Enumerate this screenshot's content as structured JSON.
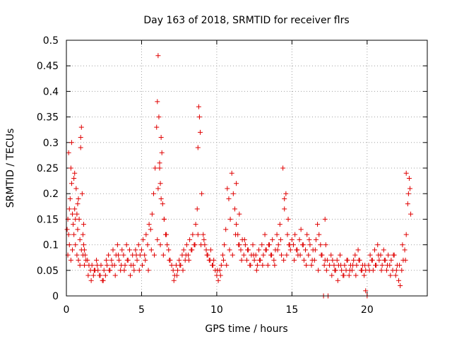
{
  "chart_data": {
    "type": "scatter",
    "title": "Day 163 of 2018, SRMTID for receiver flrs",
    "xlabel": "GPS time / hours",
    "ylabel": "SRMTID / TECUs",
    "xlim": [
      0,
      24
    ],
    "ylim": [
      0,
      0.5
    ],
    "x_ticks": [
      0,
      5,
      10,
      15,
      20
    ],
    "x_tick_labels": [
      "0",
      "5",
      "10",
      "15",
      "20"
    ],
    "y_ticks": [
      0,
      0.05,
      0.1,
      0.15,
      0.2,
      0.25,
      0.3,
      0.35,
      0.4,
      0.45,
      0.5
    ],
    "y_tick_labels": [
      "0",
      "0.05",
      "0.1",
      "0.15",
      "0.2",
      "0.25",
      "0.3",
      "0.35",
      "0.4",
      "0.45",
      "0.5"
    ],
    "grid": true,
    "marker": "+",
    "marker_color": "#e00000",
    "series": [
      {
        "name": "SRMTID",
        "x": [
          0.05,
          0.1,
          0.15,
          0.2,
          0.25,
          0.3,
          0.35,
          0.4,
          0.45,
          0.5,
          0.55,
          0.6,
          0.65,
          0.7,
          0.75,
          0.8,
          0.85,
          0.9,
          0.95,
          1.0,
          1.05,
          1.1,
          1.15,
          1.2,
          1.25,
          1.3,
          0.1,
          0.2,
          0.3,
          0.4,
          0.5,
          0.6,
          0.7,
          0.8,
          0.9,
          1.0,
          1.1,
          1.2,
          0.15,
          0.35,
          0.55,
          0.75,
          0.95,
          1.15,
          1.4,
          1.5,
          1.6,
          1.7,
          1.8,
          1.9,
          2.0,
          2.1,
          2.2,
          2.3,
          2.4,
          2.5,
          2.6,
          2.7,
          2.8,
          2.9,
          3.0,
          3.1,
          3.2,
          3.3,
          3.4,
          3.5,
          3.6,
          3.7,
          3.8,
          3.9,
          4.0,
          4.1,
          4.2,
          4.3,
          4.4,
          4.5,
          4.6,
          4.7,
          4.8,
          4.9,
          1.45,
          1.65,
          1.85,
          2.05,
          2.25,
          2.45,
          2.65,
          2.85,
          3.05,
          3.25,
          3.45,
          3.65,
          3.85,
          4.05,
          4.25,
          4.45,
          4.65,
          4.85,
          5.0,
          5.1,
          5.2,
          5.3,
          5.4,
          5.5,
          5.6,
          5.7,
          5.8,
          5.9,
          6.0,
          6.05,
          6.1,
          6.15,
          6.2,
          6.25,
          6.3,
          6.35,
          6.4,
          6.5,
          6.6,
          6.7,
          6.8,
          6.9,
          7.0,
          5.05,
          5.25,
          5.45,
          5.65,
          5.85,
          6.05,
          6.25,
          6.45,
          6.65,
          6.85,
          6.1,
          6.2,
          6.3,
          6.5,
          7.1,
          7.2,
          7.3,
          7.4,
          7.5,
          7.6,
          7.7,
          7.8,
          7.9,
          8.0,
          8.1,
          8.2,
          8.3,
          8.4,
          8.5,
          8.6,
          8.7,
          8.75,
          8.8,
          8.85,
          8.9,
          9.0,
          9.1,
          9.2,
          9.3,
          9.4,
          9.5,
          9.6,
          9.7,
          9.8,
          9.9,
          7.15,
          7.35,
          7.55,
          7.75,
          7.95,
          8.15,
          8.35,
          8.55,
          8.75,
          8.95,
          9.15,
          9.35,
          9.55,
          9.75,
          10.0,
          10.1,
          10.2,
          10.3,
          10.4,
          10.5,
          10.6,
          10.7,
          10.8,
          10.9,
          11.0,
          11.1,
          11.2,
          11.3,
          11.4,
          11.5,
          11.6,
          11.7,
          11.8,
          11.9,
          12.0,
          12.1,
          12.2,
          12.3,
          12.4,
          12.5,
          10.05,
          10.25,
          10.45,
          10.65,
          10.85,
          11.05,
          11.25,
          11.45,
          11.65,
          11.85,
          12.05,
          12.25,
          12.45,
          11.3,
          11.5,
          12.6,
          12.7,
          12.8,
          12.9,
          13.0,
          13.1,
          13.2,
          13.3,
          13.4,
          13.5,
          13.6,
          13.7,
          13.8,
          13.9,
          14.0,
          14.1,
          14.2,
          14.3,
          14.4,
          14.5,
          14.6,
          14.7,
          14.8,
          14.9,
          15.0,
          12.65,
          12.85,
          13.05,
          13.25,
          13.45,
          13.65,
          13.85,
          14.05,
          14.25,
          14.45,
          14.65,
          14.85,
          14.5,
          14.75,
          15.1,
          15.2,
          15.3,
          15.4,
          15.5,
          15.6,
          15.7,
          15.8,
          15.9,
          16.0,
          16.1,
          16.2,
          16.3,
          16.4,
          16.5,
          16.6,
          16.7,
          16.8,
          16.9,
          17.0,
          17.1,
          17.2,
          17.3,
          17.4,
          17.5,
          15.15,
          15.35,
          15.55,
          15.75,
          15.95,
          16.15,
          16.35,
          16.55,
          16.75,
          16.95,
          17.15,
          17.35,
          17.2,
          17.25,
          17.6,
          17.7,
          17.8,
          17.9,
          18.0,
          18.1,
          18.2,
          18.3,
          18.4,
          18.5,
          18.6,
          18.7,
          18.8,
          18.9,
          19.0,
          19.1,
          19.2,
          19.3,
          19.4,
          19.5,
          19.6,
          19.7,
          19.8,
          19.9,
          20.0,
          17.65,
          17.85,
          18.05,
          18.25,
          18.45,
          18.65,
          18.85,
          19.05,
          19.25,
          19.45,
          19.65,
          19.85,
          19.9,
          20.1,
          20.2,
          20.3,
          20.4,
          20.5,
          20.6,
          20.7,
          20.8,
          20.9,
          21.0,
          21.1,
          21.2,
          21.3,
          21.4,
          21.5,
          21.6,
          21.7,
          21.8,
          21.9,
          22.0,
          22.1,
          22.2,
          22.3,
          22.4,
          22.5,
          22.6,
          22.7,
          22.8,
          22.9,
          20.15,
          20.35,
          20.55,
          20.75,
          20.95,
          21.15,
          21.35,
          21.55,
          21.75,
          21.95,
          22.15,
          22.35,
          22.55,
          22.75,
          22.6,
          22.85
        ],
        "y": [
          0.13,
          0.15,
          0.12,
          0.17,
          0.19,
          0.25,
          0.22,
          0.16,
          0.14,
          0.23,
          0.17,
          0.15,
          0.21,
          0.16,
          0.13,
          0.19,
          0.15,
          0.11,
          0.29,
          0.33,
          0.2,
          0.12,
          0.1,
          0.09,
          0.08,
          0.07,
          0.08,
          0.1,
          0.07,
          0.09,
          0.12,
          0.1,
          0.08,
          0.07,
          0.06,
          0.09,
          0.08,
          0.06,
          0.28,
          0.3,
          0.24,
          0.18,
          0.31,
          0.14,
          0.07,
          0.06,
          0.05,
          0.06,
          0.04,
          0.05,
          0.07,
          0.05,
          0.04,
          0.06,
          0.03,
          0.05,
          0.04,
          0.06,
          0.08,
          0.05,
          0.07,
          0.09,
          0.06,
          0.08,
          0.1,
          0.07,
          0.05,
          0.09,
          0.08,
          0.06,
          0.1,
          0.07,
          0.09,
          0.06,
          0.08,
          0.05,
          0.09,
          0.07,
          0.1,
          0.08,
          0.04,
          0.03,
          0.05,
          0.06,
          0.04,
          0.03,
          0.07,
          0.05,
          0.06,
          0.04,
          0.08,
          0.06,
          0.05,
          0.07,
          0.04,
          0.06,
          0.08,
          0.05,
          0.09,
          0.11,
          0.08,
          0.12,
          0.1,
          0.14,
          0.13,
          0.16,
          0.2,
          0.25,
          0.33,
          0.38,
          0.47,
          0.35,
          0.26,
          0.22,
          0.31,
          0.28,
          0.18,
          0.15,
          0.12,
          0.1,
          0.09,
          0.07,
          0.06,
          0.06,
          0.07,
          0.05,
          0.09,
          0.08,
          0.11,
          0.1,
          0.08,
          0.12,
          0.07,
          0.21,
          0.25,
          0.19,
          0.15,
          0.05,
          0.04,
          0.06,
          0.05,
          0.07,
          0.06,
          0.08,
          0.09,
          0.07,
          0.1,
          0.08,
          0.11,
          0.09,
          0.12,
          0.1,
          0.14,
          0.17,
          0.29,
          0.37,
          0.35,
          0.32,
          0.2,
          0.12,
          0.1,
          0.09,
          0.08,
          0.07,
          0.09,
          0.06,
          0.07,
          0.05,
          0.03,
          0.04,
          0.06,
          0.05,
          0.08,
          0.07,
          0.09,
          0.1,
          0.12,
          0.1,
          0.11,
          0.08,
          0.07,
          0.06,
          0.04,
          0.03,
          0.05,
          0.06,
          0.08,
          0.1,
          0.13,
          0.21,
          0.19,
          0.15,
          0.24,
          0.2,
          0.17,
          0.14,
          0.12,
          0.1,
          0.09,
          0.11,
          0.08,
          0.1,
          0.07,
          0.09,
          0.06,
          0.08,
          0.1,
          0.07,
          0.05,
          0.04,
          0.07,
          0.06,
          0.09,
          0.08,
          0.12,
          0.1,
          0.07,
          0.11,
          0.09,
          0.06,
          0.08,
          0.22,
          0.16,
          0.08,
          0.06,
          0.09,
          0.07,
          0.1,
          0.08,
          0.12,
          0.09,
          0.06,
          0.1,
          0.08,
          0.11,
          0.07,
          0.09,
          0.12,
          0.1,
          0.14,
          0.08,
          0.25,
          0.19,
          0.2,
          0.12,
          0.1,
          0.09,
          0.11,
          0.05,
          0.07,
          0.06,
          0.09,
          0.1,
          0.08,
          0.06,
          0.09,
          0.11,
          0.07,
          0.08,
          0.1,
          0.17,
          0.15,
          0.1,
          0.12,
          0.09,
          0.08,
          0.11,
          0.13,
          0.1,
          0.07,
          0.09,
          0.12,
          0.08,
          0.1,
          0.06,
          0.09,
          0.07,
          0.11,
          0.14,
          0.12,
          0.1,
          0.08,
          0.0,
          0.07,
          0.05,
          0.0,
          0.06,
          0.07,
          0.09,
          0.08,
          0.1,
          0.06,
          0.11,
          0.07,
          0.09,
          0.05,
          0.08,
          0.06,
          0.07,
          0.15,
          0.1,
          0.08,
          0.07,
          0.06,
          0.05,
          0.07,
          0.06,
          0.08,
          0.05,
          0.04,
          0.06,
          0.05,
          0.07,
          0.04,
          0.06,
          0.05,
          0.07,
          0.08,
          0.06,
          0.09,
          0.07,
          0.05,
          0.06,
          0.04,
          0.05,
          0.0,
          0.04,
          0.05,
          0.03,
          0.06,
          0.04,
          0.07,
          0.05,
          0.06,
          0.04,
          0.07,
          0.05,
          0.06,
          0.01,
          0.06,
          0.08,
          0.07,
          0.05,
          0.09,
          0.06,
          0.1,
          0.07,
          0.08,
          0.06,
          0.09,
          0.07,
          0.05,
          0.08,
          0.06,
          0.07,
          0.05,
          0.08,
          0.04,
          0.06,
          0.03,
          0.02,
          0.05,
          0.07,
          0.09,
          0.12,
          0.18,
          0.23,
          0.16,
          0.05,
          0.07,
          0.06,
          0.08,
          0.05,
          0.07,
          0.06,
          0.04,
          0.08,
          0.05,
          0.06,
          0.1,
          0.07,
          0.2,
          0.24,
          0.21
        ]
      }
    ]
  }
}
